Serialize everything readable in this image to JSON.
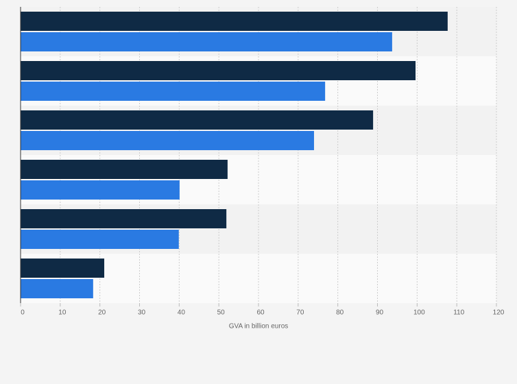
{
  "chart_data": {
    "type": "bar",
    "orientation": "horizontal",
    "xlabel": "GVA in billion euros",
    "categories": [
      null,
      null,
      null,
      null,
      null,
      null
    ],
    "series": [
      {
        "color": "#0f2a45",
        "values": [
          107.7,
          99.6,
          88.9,
          52.2,
          51.9,
          21.1
        ]
      },
      {
        "color": "#2a7ae2",
        "values": [
          93.7,
          76.8,
          74.0,
          40.1,
          39.9,
          18.3
        ]
      }
    ],
    "xlim": [
      0,
      120
    ],
    "xticks": [
      0,
      10,
      20,
      30,
      40,
      50,
      60,
      70,
      80,
      90,
      100,
      110,
      120
    ],
    "grid": true
  }
}
